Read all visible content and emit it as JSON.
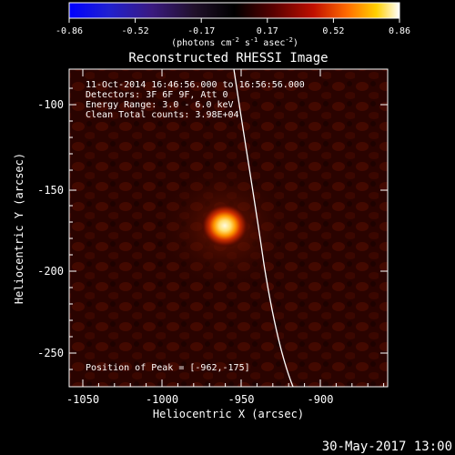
{
  "colorbar": {
    "ticks": [
      "-0.86",
      "-0.52",
      "-0.17",
      "0.17",
      "0.52",
      "0.86"
    ],
    "units_prefix": "(photons cm",
    "units_exp1": "-2",
    "units_mid1": " s",
    "units_exp2": "-1",
    "units_mid2": " asec",
    "units_exp3": "-2",
    "units_suffix": ")"
  },
  "title": "Reconstructed RHESSI Image",
  "info": {
    "line1": "11-Oct-2014 16:46:56.000 to 16:56:56.000",
    "line2": "Detectors: 3F 6F 9F, Att 0",
    "line3": "Energy Range: 3.0 - 6.0 keV",
    "line4": "Clean    Total counts: 3.98E+04",
    "peak": "Position of Peak = [-962,-175]"
  },
  "x_axis": {
    "label": "Heliocentric X (arcsec)",
    "ticks": [
      "-1050",
      "-1000",
      "-950",
      "-900"
    ]
  },
  "y_axis": {
    "label": "Heliocentric Y (arcsec)",
    "ticks": [
      "-100",
      "-150",
      "-200",
      "-250"
    ]
  },
  "timestamp": "30-May-2017 13:00",
  "colors": {
    "background": "#000000",
    "axis": "#ffffff",
    "limb": "#ffffff",
    "image_base": "#2a0300",
    "source_core": "#fffbe0"
  },
  "icons": [
    "colorbar-gradient",
    "solar-limb-curve",
    "flare-source-blob"
  ]
}
